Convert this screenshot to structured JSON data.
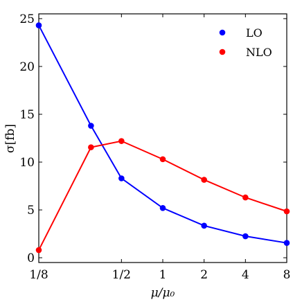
{
  "chart_data": {
    "type": "line",
    "xlabel": "μ/μ₀",
    "ylabel": "σ[fb]",
    "xscale": "log2",
    "xlim": [
      0.125,
      8
    ],
    "ylim": [
      -0.5,
      25.5
    ],
    "x_ticks": [
      {
        "value": 0.125,
        "label": "1/8"
      },
      {
        "value": 0.5,
        "label": "1/2"
      },
      {
        "value": 1,
        "label": "1"
      },
      {
        "value": 2,
        "label": "2"
      },
      {
        "value": 4,
        "label": "4"
      },
      {
        "value": 8,
        "label": "8"
      }
    ],
    "y_ticks": [
      0,
      5,
      10,
      15,
      20,
      25
    ],
    "legend_position": "top-right",
    "series": [
      {
        "name": "LO",
        "color": "#0000ff",
        "x": [
          0.125,
          0.3,
          0.5,
          1,
          2,
          4,
          8
        ],
        "y": [
          24.3,
          13.8,
          8.3,
          5.2,
          3.35,
          2.25,
          1.55
        ]
      },
      {
        "name": "NLO",
        "color": "#ff0000",
        "x": [
          0.125,
          0.3,
          0.5,
          1,
          2,
          4,
          8
        ],
        "y": [
          0.8,
          11.55,
          12.2,
          10.3,
          8.15,
          6.3,
          4.85
        ]
      }
    ]
  }
}
